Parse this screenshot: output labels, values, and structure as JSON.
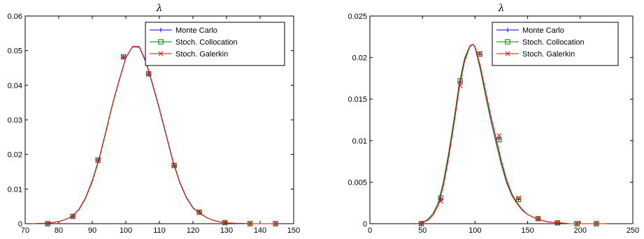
{
  "colors": {
    "monte_carlo": "#0000ff",
    "stoch_collocation": "#008000",
    "stoch_galerkin": "#ff0000"
  },
  "chart_data": [
    {
      "type": "line",
      "title": "λ",
      "xlabel": "",
      "ylabel": "",
      "xlim": [
        70,
        150
      ],
      "ylim": [
        0,
        0.06
      ],
      "x_ticks": [
        "70",
        "80",
        "90",
        "100",
        "110",
        "120",
        "130",
        "140",
        "150"
      ],
      "y_ticks": [
        "0",
        "0.01",
        "0.02",
        "0.03",
        "0.04",
        "0.05",
        "0.06"
      ],
      "grid": false,
      "legend_position": "top-right",
      "marker_x": [
        76.7,
        84.2,
        91.7,
        99.3,
        106.8,
        114.4,
        121.9,
        129.5,
        137.0,
        144.6
      ],
      "series": [
        {
          "name": "Monte Carlo",
          "marker": "plus",
          "x": [
            72,
            76,
            78,
            80,
            82,
            84,
            86,
            88,
            90,
            92,
            94,
            96,
            98,
            100,
            102,
            104,
            106,
            108,
            110,
            112,
            114,
            116,
            118,
            120,
            122,
            124,
            126,
            128,
            130,
            133,
            137,
            141,
            145
          ],
          "y": [
            0.0,
            0.0001,
            0.0003,
            0.0006,
            0.0012,
            0.0021,
            0.0041,
            0.0075,
            0.0125,
            0.0187,
            0.0265,
            0.0345,
            0.0415,
            0.048,
            0.0511,
            0.051,
            0.0466,
            0.04,
            0.033,
            0.0255,
            0.018,
            0.012,
            0.0075,
            0.0045,
            0.003,
            0.0018,
            0.001,
            0.0005,
            0.0002,
            0.0001,
            0.0,
            0.0,
            0.0
          ],
          "markers": [
            0.0,
            0.0021,
            0.0183,
            0.0481,
            0.0432,
            0.0168,
            0.0033,
            0.0003,
            0.0,
            0.0
          ]
        },
        {
          "name": "Stoch. Collocation",
          "marker": "square",
          "x": [
            72,
            76,
            78,
            80,
            82,
            84,
            86,
            88,
            90,
            92,
            94,
            96,
            98,
            100,
            102,
            104,
            106,
            108,
            110,
            112,
            114,
            116,
            118,
            120,
            122,
            124,
            126,
            128,
            130,
            133,
            137,
            141,
            145
          ],
          "y": [
            0.0,
            0.0001,
            0.0003,
            0.0006,
            0.0012,
            0.0021,
            0.0041,
            0.0075,
            0.0125,
            0.0187,
            0.0265,
            0.0345,
            0.0415,
            0.048,
            0.0512,
            0.0511,
            0.0467,
            0.0401,
            0.0331,
            0.0256,
            0.0181,
            0.0121,
            0.0076,
            0.0046,
            0.003,
            0.0018,
            0.001,
            0.0005,
            0.0002,
            0.0001,
            0.0,
            0.0,
            0.0
          ],
          "markers": [
            0.0,
            0.0021,
            0.0184,
            0.0482,
            0.0433,
            0.0168,
            0.0033,
            0.0003,
            0.0,
            0.0
          ]
        },
        {
          "name": "Stoch. Galerkin",
          "marker": "cross",
          "x": [
            72,
            76,
            78,
            80,
            82,
            84,
            86,
            88,
            90,
            92,
            94,
            96,
            98,
            100,
            102,
            104,
            106,
            108,
            110,
            112,
            114,
            116,
            118,
            120,
            122,
            124,
            126,
            128,
            130,
            133,
            137,
            141,
            145
          ],
          "y": [
            0.0,
            0.0001,
            0.0003,
            0.0006,
            0.0012,
            0.0021,
            0.004,
            0.0073,
            0.0122,
            0.0184,
            0.0262,
            0.0343,
            0.0413,
            0.0479,
            0.0512,
            0.0512,
            0.0469,
            0.0403,
            0.0333,
            0.0258,
            0.0183,
            0.0122,
            0.0077,
            0.0046,
            0.003,
            0.0018,
            0.001,
            0.0005,
            0.0002,
            0.0001,
            0.0,
            0.0,
            0.0
          ],
          "markers": [
            0.0,
            0.0021,
            0.0182,
            0.0481,
            0.0433,
            0.0169,
            0.0034,
            0.0003,
            0.0,
            0.0
          ]
        }
      ]
    },
    {
      "type": "line",
      "title": "λ",
      "xlabel": "",
      "ylabel": "",
      "xlim": [
        0,
        250
      ],
      "ylim": [
        0,
        0.025
      ],
      "x_ticks": [
        "0",
        "50",
        "100",
        "150",
        "200",
        "250"
      ],
      "y_ticks": [
        "0",
        "0.005",
        "0.01",
        "0.015",
        "0.02",
        "0.025"
      ],
      "grid": false,
      "legend_position": "top-right",
      "marker_x": [
        48.9,
        67.4,
        85.9,
        104.4,
        122.9,
        141.4,
        159.9,
        178.4,
        196.9,
        215.4
      ],
      "series": [
        {
          "name": "Monte Carlo",
          "marker": "plus",
          "x": [
            45,
            50,
            55,
            60,
            65,
            70,
            75,
            80,
            85,
            90,
            95,
            98,
            100,
            105,
            110,
            115,
            120,
            125,
            130,
            135,
            140,
            145,
            150,
            160,
            170,
            180,
            190,
            200,
            215,
            225
          ],
          "y": [
            0.0,
            0.0001,
            0.0005,
            0.0012,
            0.0025,
            0.005,
            0.0085,
            0.0125,
            0.0168,
            0.0198,
            0.0214,
            0.0216,
            0.0212,
            0.0186,
            0.0155,
            0.0125,
            0.0098,
            0.0072,
            0.005,
            0.0034,
            0.0024,
            0.0016,
            0.0011,
            0.0005,
            0.0002,
            0.0001,
            0.0,
            0.0,
            0.0,
            0.0
          ],
          "markers": [
            0.0,
            0.003,
            0.0171,
            0.0204,
            0.0102,
            0.0029,
            0.0006,
            0.0001,
            0.0,
            0.0
          ]
        },
        {
          "name": "Stoch. Collocation",
          "marker": "square",
          "x": [
            45,
            50,
            55,
            60,
            65,
            70,
            75,
            80,
            85,
            90,
            95,
            98,
            100,
            105,
            110,
            115,
            120,
            125,
            130,
            135,
            140,
            145,
            150,
            160,
            170,
            180,
            190,
            200,
            215,
            225
          ],
          "y": [
            0.0,
            0.0001,
            0.0005,
            0.0012,
            0.0025,
            0.0051,
            0.0086,
            0.0126,
            0.0169,
            0.0199,
            0.0214,
            0.0216,
            0.0212,
            0.0186,
            0.0154,
            0.0124,
            0.0097,
            0.0071,
            0.0049,
            0.0034,
            0.0024,
            0.0016,
            0.0011,
            0.0005,
            0.0002,
            0.0001,
            0.0,
            0.0,
            0.0,
            0.0
          ],
          "markers": [
            0.0,
            0.0031,
            0.0172,
            0.0204,
            0.0101,
            0.0029,
            0.0006,
            0.0001,
            0.0,
            0.0
          ]
        },
        {
          "name": "Stoch. Galerkin",
          "marker": "cross",
          "x": [
            45,
            50,
            55,
            60,
            65,
            70,
            75,
            80,
            85,
            90,
            95,
            98,
            100,
            105,
            110,
            115,
            120,
            125,
            130,
            135,
            140,
            145,
            150,
            160,
            170,
            180,
            190,
            200,
            215,
            225
          ],
          "y": [
            0.0,
            0.0001,
            0.0004,
            0.001,
            0.0022,
            0.0046,
            0.008,
            0.012,
            0.0163,
            0.0195,
            0.0213,
            0.0216,
            0.0213,
            0.019,
            0.016,
            0.013,
            0.0103,
            0.0076,
            0.0053,
            0.0036,
            0.0025,
            0.0017,
            0.0011,
            0.0005,
            0.0002,
            0.0001,
            0.0,
            0.0,
            0.0,
            0.0
          ],
          "markers": [
            0.0,
            0.0027,
            0.0166,
            0.0205,
            0.0106,
            0.0031,
            0.0006,
            0.0001,
            0.0,
            0.0
          ]
        }
      ]
    }
  ]
}
